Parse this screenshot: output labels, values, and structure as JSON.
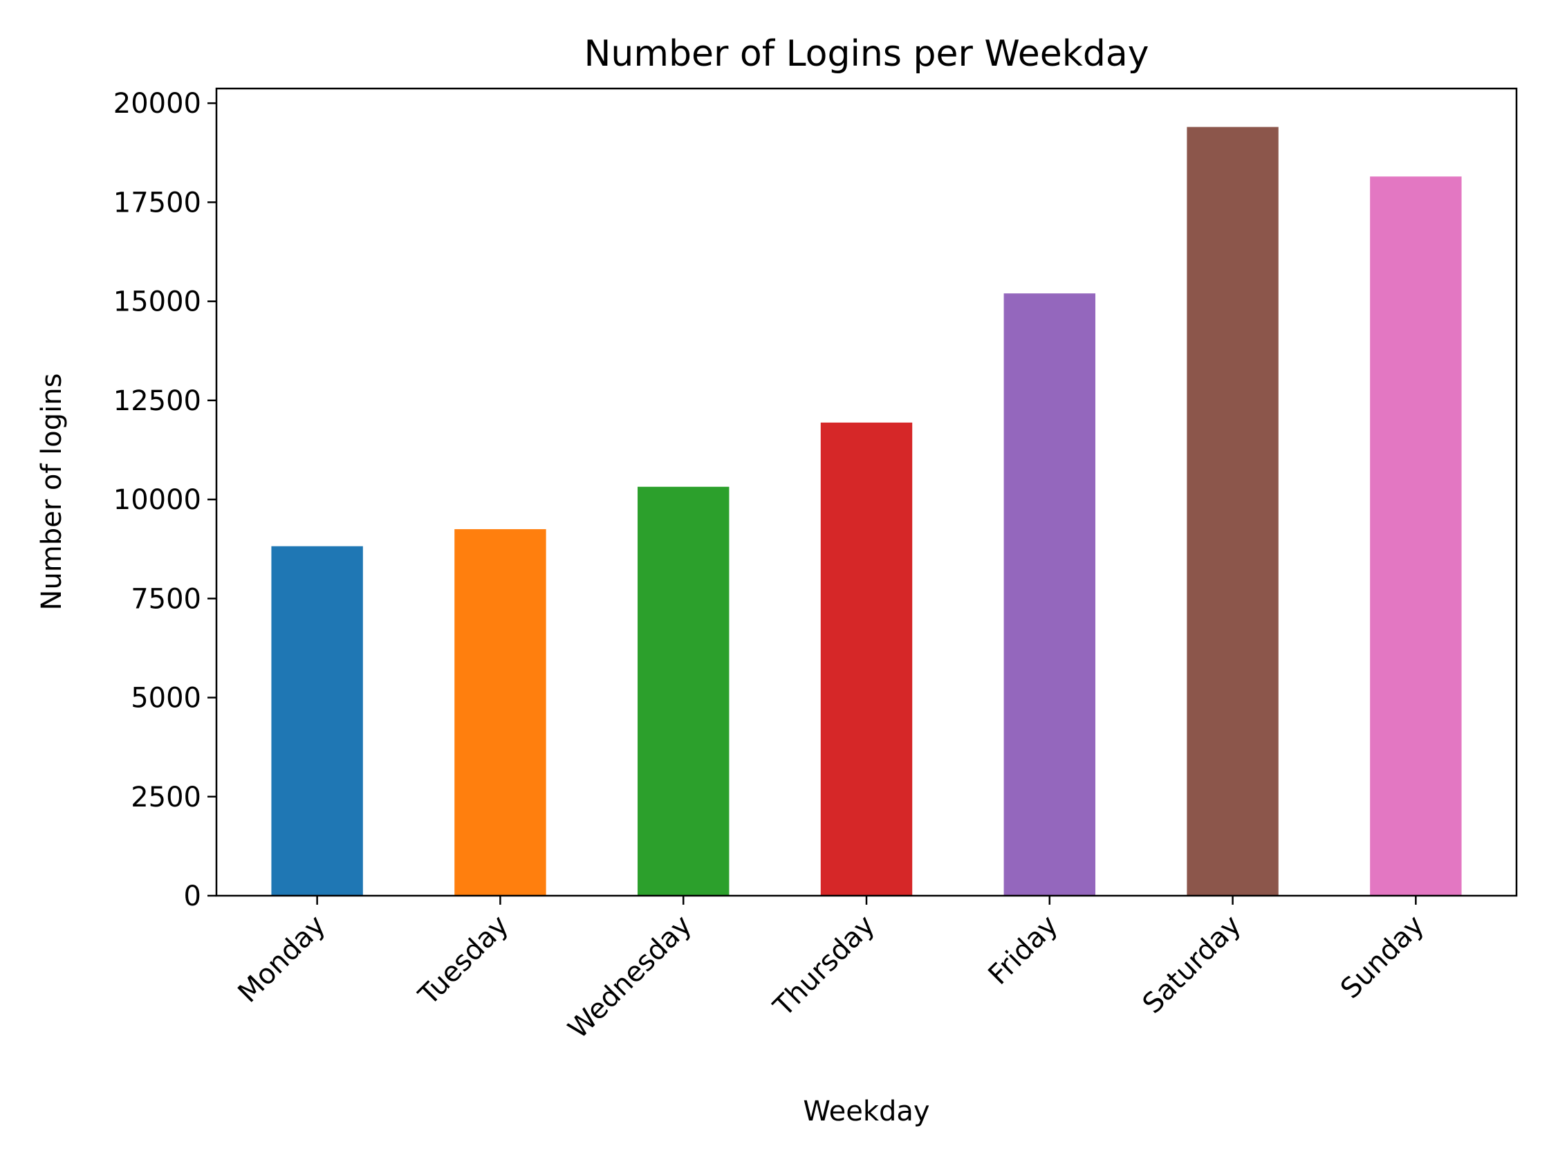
{
  "chart_data": {
    "type": "bar",
    "title": "Number of Logins per Weekday",
    "xlabel": "Weekday",
    "ylabel": "Number of logins",
    "categories": [
      "Monday",
      "Tuesday",
      "Wednesday",
      "Thursday",
      "Friday",
      "Saturday",
      "Sunday"
    ],
    "values": [
      8820,
      9250,
      10320,
      11940,
      15200,
      19400,
      18150
    ],
    "colors": [
      "#1f77b4",
      "#ff7f0e",
      "#2ca02c",
      "#d62728",
      "#9467bd",
      "#8c564b",
      "#e377c2"
    ],
    "ylim": [
      0,
      20370
    ],
    "yticks": [
      0,
      2500,
      5000,
      7500,
      10000,
      12500,
      15000,
      17500,
      20000
    ],
    "grid": false,
    "legend": "none"
  }
}
